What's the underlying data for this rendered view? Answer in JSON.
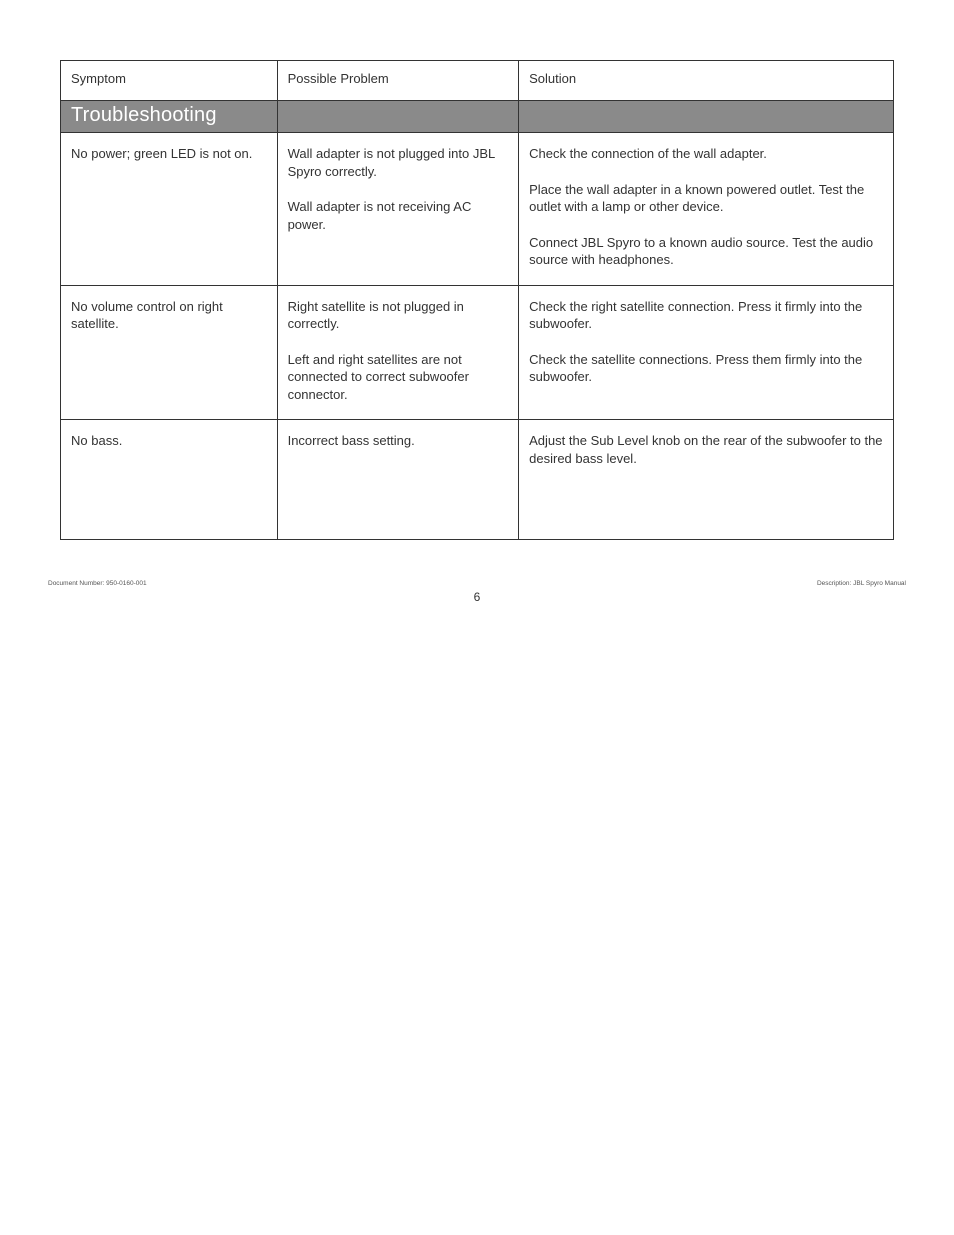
{
  "table": {
    "headers": {
      "c1": "Symptom",
      "c2": "Possible Problem",
      "c3": "Solution"
    },
    "section_title": "Troubleshooting",
    "rows": [
      {
        "symptom": "No power; green LED is not on.",
        "problems": [
          "Wall adapter is not plugged into JBL Spyro correctly.",
          "Wall adapter is not receiving AC power."
        ],
        "solutions": [
          "Check the connection of the wall adapter.",
          "Place the wall adapter in a known powered outlet. Test the outlet with a lamp or other device.",
          "Connect JBL Spyro to a known audio source. Test the audio source with headphones."
        ]
      },
      {
        "symptom": "No volume control on right satellite.",
        "problems": [
          "Right satellite is not plugged in correctly.",
          "Left and right satellites are not connected to correct subwoofer connector."
        ],
        "solutions": [
          "Check the right satellite connection. Press it firmly into the  subwoofer.",
          "Check the satellite connections. Press them firmly into the subwoofer."
        ]
      },
      {
        "symptom": "No bass.",
        "problems": [
          "Incorrect bass setting."
        ],
        "solutions": [
          "Adjust the Sub Level knob on the rear of the subwoofer to the desired bass level."
        ]
      }
    ]
  },
  "page_number": "6",
  "footer": {
    "left_label": "Document Number:",
    "left_value": "950-0160-001",
    "right_label": "Description:",
    "right_value": "JBL Spyro Manual"
  }
}
